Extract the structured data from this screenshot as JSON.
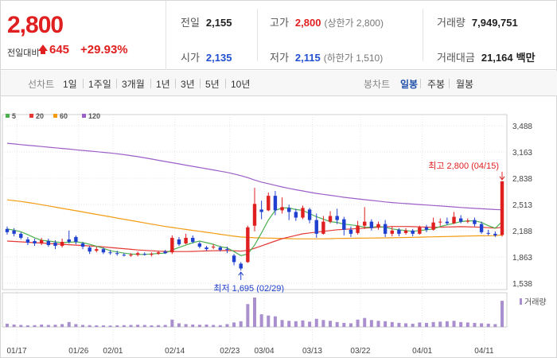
{
  "header": {
    "price": "2,800",
    "change_label": "전일대비",
    "change_amount": "645",
    "change_pct": "+29.93%",
    "prev_close_label": "전일",
    "prev_close": "2,155",
    "high_label": "고가",
    "high": "2,800",
    "high_sub": "(상한가 2,800)",
    "volume_label": "거래량",
    "volume": "7,949,751",
    "open_label": "시가",
    "open": "2,135",
    "low_label": "저가",
    "low": "2,115",
    "low_sub": "(하한가 1,510)",
    "amount_label": "거래대금",
    "amount": "21,164",
    "amount_unit": "백만"
  },
  "periods": {
    "label": "선차트",
    "items": [
      "1일",
      "1주일",
      "3개월",
      "1년",
      "3년",
      "5년",
      "10년"
    ]
  },
  "candle_tabs": {
    "label": "봉차트",
    "items": [
      "일봉",
      "주봉",
      "월봉"
    ],
    "selected": 0
  },
  "colors": {
    "up": "#e02020",
    "down": "#2040d0",
    "ma5": "#4caf50",
    "ma20": "#e53935",
    "ma60": "#f39c12",
    "ma120": "#9c5fc7",
    "volume": "#a98fce"
  },
  "chart_data": {
    "type": "candlestick",
    "legend": [
      "5",
      "20",
      "60",
      "120"
    ],
    "y_ticks": [
      "3,488",
      "3,163",
      "2,838",
      "2,513",
      "2,188",
      "1,863",
      "1,538"
    ],
    "ylim": [
      1538,
      3488
    ],
    "x_ticks": [
      "01/17",
      "01/26",
      "02/01",
      "02/14",
      "02/23",
      "03/04",
      "03/13",
      "03/22",
      "04/01",
      "04/11"
    ],
    "high_annotation": "최고 2,800 (04/15)",
    "low_annotation": "최저 1,695 (02/29)",
    "volume_label": "거래량",
    "candles": [
      [
        2210,
        2170,
        2240,
        2140
      ],
      [
        2190,
        2150,
        2220,
        2120
      ],
      [
        2150,
        2100,
        2170,
        2080
      ],
      [
        2080,
        2040,
        2110,
        2010
      ],
      [
        2060,
        2030,
        2090,
        2000
      ],
      [
        2030,
        2070,
        2100,
        2010
      ],
      [
        2060,
        2010,
        2090,
        1990
      ],
      [
        2040,
        2000,
        2070,
        1960
      ],
      [
        2000,
        2050,
        2090,
        1980
      ],
      [
        2080,
        2050,
        2190,
        2030
      ],
      [
        2110,
        2050,
        2130,
        2020
      ],
      [
        2030,
        1990,
        2050,
        1960
      ],
      [
        1980,
        1930,
        2000,
        1900
      ],
      [
        1940,
        1960,
        1990,
        1920
      ],
      [
        1960,
        1920,
        1980,
        1900
      ],
      [
        1920,
        1910,
        1950,
        1890
      ],
      [
        1910,
        1900,
        1940,
        1880
      ],
      [
        1890,
        1880,
        1910,
        1870
      ],
      [
        1880,
        1890,
        1910,
        1865
      ],
      [
        1890,
        1910,
        1930,
        1870
      ],
      [
        1900,
        1890,
        1920,
        1880
      ],
      [
        1890,
        1900,
        1920,
        1870
      ],
      [
        1905,
        1920,
        1940,
        1890
      ],
      [
        1930,
        1910,
        1950,
        1900
      ],
      [
        1920,
        2100,
        2130,
        1900
      ],
      [
        2080,
        2020,
        2110,
        2000
      ],
      [
        2030,
        2100,
        2150,
        2020
      ],
      [
        2100,
        2050,
        2130,
        2030
      ],
      [
        2030,
        1990,
        2050,
        1970
      ],
      [
        1980,
        1960,
        2000,
        1940
      ],
      [
        1980,
        1990,
        2020,
        1960
      ],
      [
        1980,
        1950,
        2000,
        1930
      ],
      [
        1960,
        1950,
        1990,
        1910
      ],
      [
        1880,
        1800,
        1900,
        1760
      ],
      [
        1780,
        1720,
        1800,
        1695
      ],
      [
        1800,
        2230,
        2250,
        1790
      ],
      [
        2250,
        2520,
        2720,
        2180
      ],
      [
        2450,
        2420,
        2560,
        2330
      ],
      [
        2440,
        2620,
        2660,
        2430
      ],
      [
        2620,
        2440,
        2680,
        2380
      ],
      [
        2440,
        2480,
        2600,
        2400
      ],
      [
        2470,
        2420,
        2510,
        2320
      ],
      [
        2420,
        2350,
        2460,
        2310
      ],
      [
        2350,
        2470,
        2500,
        2330
      ],
      [
        2450,
        2320,
        2470,
        2280
      ],
      [
        2320,
        2150,
        2400,
        2100
      ],
      [
        2150,
        2300,
        2370,
        2140
      ],
      [
        2300,
        2370,
        2430,
        2280
      ],
      [
        2370,
        2320,
        2460,
        2270
      ],
      [
        2330,
        2200,
        2360,
        2130
      ],
      [
        2200,
        2150,
        2240,
        2110
      ],
      [
        2160,
        2250,
        2310,
        2140
      ],
      [
        2250,
        2300,
        2480,
        2210
      ],
      [
        2300,
        2220,
        2330,
        2190
      ],
      [
        2230,
        2270,
        2300,
        2200
      ],
      [
        2270,
        2150,
        2320,
        2110
      ],
      [
        2150,
        2190,
        2240,
        2120
      ],
      [
        2200,
        2150,
        2220,
        2120
      ],
      [
        2160,
        2190,
        2220,
        2140
      ],
      [
        2190,
        2150,
        2210,
        2120
      ],
      [
        2150,
        2230,
        2250,
        2140
      ],
      [
        2230,
        2200,
        2260,
        2170
      ],
      [
        2200,
        2290,
        2350,
        2190
      ],
      [
        2290,
        2300,
        2340,
        2250
      ],
      [
        2300,
        2280,
        2350,
        2260
      ],
      [
        2280,
        2360,
        2420,
        2270
      ],
      [
        2340,
        2300,
        2380,
        2280
      ],
      [
        2300,
        2310,
        2340,
        2280
      ],
      [
        2320,
        2270,
        2350,
        2240
      ],
      [
        2270,
        2170,
        2300,
        2150
      ],
      [
        2160,
        2150,
        2200,
        2130
      ],
      [
        2150,
        2130,
        2180,
        2110
      ],
      [
        2135,
        2800,
        2800,
        2115
      ]
    ],
    "ma5": [
      2210,
      2195,
      2175,
      2140,
      2100,
      2070,
      2060,
      2050,
      2040,
      2045,
      2050,
      2040,
      2020,
      1995,
      1970,
      1940,
      1925,
      1910,
      1900,
      1895,
      1895,
      1900,
      1905,
      1910,
      1950,
      1980,
      2010,
      2040,
      2060,
      2040,
      2020,
      1990,
      1975,
      1930,
      1880,
      1900,
      2010,
      2160,
      2320,
      2440,
      2470,
      2470,
      2450,
      2440,
      2400,
      2360,
      2330,
      2300,
      2290,
      2270,
      2260,
      2250,
      2230,
      2230,
      2240,
      2230,
      2210,
      2200,
      2190,
      2180,
      2190,
      2200,
      2210,
      2240,
      2260,
      2280,
      2300,
      2310,
      2310,
      2290,
      2250,
      2220,
      2300
    ],
    "ma20": [
      2060,
      2055,
      2050,
      2045,
      2040,
      2035,
      2030,
      2025,
      2020,
      2015,
      2010,
      2005,
      2000,
      1995,
      1988,
      1980,
      1972,
      1965,
      1958,
      1950,
      1945,
      1940,
      1935,
      1932,
      1930,
      1930,
      1930,
      1932,
      1935,
      1938,
      1940,
      1942,
      1943,
      1940,
      1935,
      1945,
      1970,
      2000,
      2030,
      2060,
      2090,
      2110,
      2130,
      2150,
      2160,
      2170,
      2180,
      2190,
      2200,
      2205,
      2210,
      2215,
      2220,
      2225,
      2230,
      2235,
      2240,
      2240,
      2240,
      2238,
      2235,
      2232,
      2230,
      2232,
      2234,
      2236,
      2238,
      2236,
      2234,
      2230,
      2225,
      2220,
      2230
    ],
    "ma60": [
      2570,
      2560,
      2550,
      2538,
      2525,
      2510,
      2495,
      2480,
      2465,
      2450,
      2435,
      2420,
      2405,
      2390,
      2375,
      2360,
      2345,
      2330,
      2315,
      2300,
      2285,
      2270,
      2255,
      2240,
      2228,
      2216,
      2204,
      2192,
      2180,
      2168,
      2156,
      2144,
      2132,
      2120,
      2110,
      2105,
      2100,
      2098,
      2096,
      2094,
      2092,
      2090,
      2088,
      2088,
      2088,
      2088,
      2088,
      2090,
      2092,
      2093,
      2094,
      2095,
      2096,
      2097,
      2098,
      2099,
      2100,
      2102,
      2104,
      2106,
      2108,
      2110,
      2112,
      2114,
      2116,
      2118,
      2120,
      2122,
      2124,
      2125,
      2126,
      2127,
      2135
    ],
    "ma120": [
      3270,
      3262,
      3254,
      3246,
      3238,
      3230,
      3222,
      3214,
      3206,
      3198,
      3190,
      3182,
      3174,
      3166,
      3158,
      3150,
      3140,
      3130,
      3118,
      3105,
      3090,
      3075,
      3060,
      3045,
      3030,
      3015,
      3000,
      2985,
      2970,
      2955,
      2940,
      2925,
      2910,
      2890,
      2870,
      2845,
      2815,
      2790,
      2770,
      2750,
      2730,
      2712,
      2695,
      2680,
      2665,
      2650,
      2638,
      2626,
      2614,
      2602,
      2592,
      2582,
      2572,
      2563,
      2554,
      2545,
      2537,
      2530,
      2524,
      2518,
      2512,
      2506,
      2500,
      2494,
      2488,
      2482,
      2476,
      2470,
      2465,
      2460,
      2455,
      2450,
      2447
    ],
    "volume": [
      80,
      60,
      50,
      40,
      45,
      60,
      50,
      55,
      70,
      120,
      70,
      50,
      45,
      40,
      38,
      35,
      40,
      45,
      50,
      55,
      50,
      40,
      45,
      50,
      180,
      90,
      70,
      60,
      55,
      60,
      50,
      45,
      70,
      110,
      140,
      560,
      720,
      310,
      280,
      260,
      170,
      150,
      140,
      160,
      130,
      200,
      170,
      150,
      120,
      100,
      90,
      180,
      220,
      170,
      150,
      140,
      120,
      100,
      90,
      80,
      110,
      100,
      120,
      130,
      140,
      150,
      120,
      110,
      100,
      90,
      80,
      70,
      640
    ]
  }
}
